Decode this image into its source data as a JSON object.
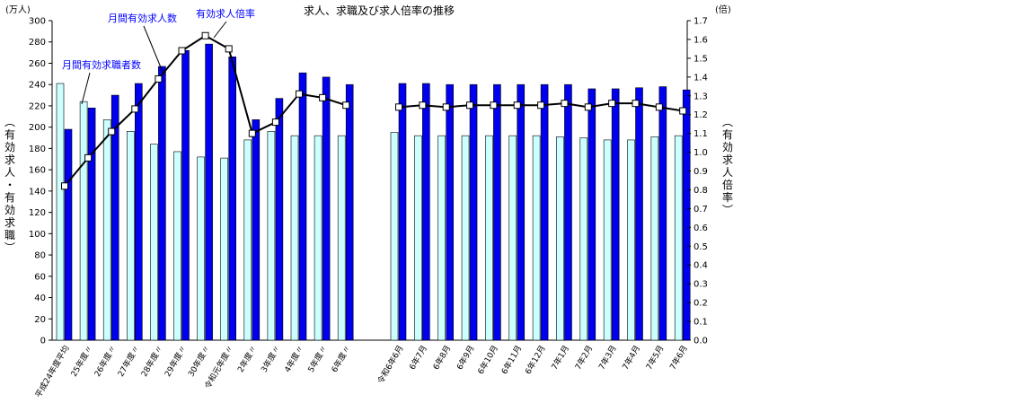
{
  "chart_data": {
    "type": "bar",
    "title": "求人、求職及び求人倍率の推移",
    "y_left_unit": "(万人)",
    "y_right_unit": "(倍)",
    "ylabel_left": "(有効求人・有効求職)",
    "ylabel_right": "(有効求人倍率)",
    "ylim_left": [
      0,
      300
    ],
    "ylim_right": [
      0.0,
      1.7
    ],
    "yticks_left": [
      "0",
      "20",
      "40",
      "60",
      "80",
      "100",
      "120",
      "140",
      "160",
      "180",
      "200",
      "220",
      "240",
      "260",
      "280",
      "300"
    ],
    "yticks_right": [
      "0.0",
      "0.1",
      "0.2",
      "0.3",
      "0.4",
      "0.5",
      "0.6",
      "0.7",
      "0.8",
      "0.9",
      "1.0",
      "1.1",
      "1.2",
      "1.3",
      "1.4",
      "1.5",
      "1.6",
      "1.7"
    ],
    "grid": false,
    "categories": [
      "平成24年度平均",
      "25年度〃",
      "26年度〃",
      "27年度〃",
      "28年度〃",
      "29年度〃",
      "30年度〃",
      "令和元年度〃",
      "2年度〃",
      "3年度〃",
      "4年度〃",
      "5年度〃",
      "6年度〃",
      "令和6年6月",
      "6年7月",
      "6年8月",
      "6年9月",
      "6年10月",
      "6年11月",
      "6年12月",
      "7年1月",
      "7年2月",
      "7年3月",
      "7年4月",
      "7年5月",
      "7年6月"
    ],
    "series": [
      {
        "name": "月間有効求職者数",
        "type": "bar",
        "color": "#ccffff",
        "values": [
          241,
          224,
          207,
          196,
          184,
          177,
          172,
          171,
          188,
          196,
          192,
          192,
          192,
          195,
          192,
          192,
          192,
          192,
          192,
          192,
          191,
          190,
          188,
          188,
          191,
          192
        ]
      },
      {
        "name": "月間有効求人数",
        "type": "bar",
        "color": "#0000ee",
        "values": [
          198,
          218,
          230,
          241,
          257,
          272,
          278,
          266,
          207,
          227,
          251,
          247,
          240,
          241,
          241,
          240,
          240,
          240,
          240,
          240,
          240,
          236,
          236,
          237,
          238,
          235
        ]
      },
      {
        "name": "有効求人倍率",
        "type": "line",
        "axis": "right",
        "color": "#000000",
        "values": [
          0.82,
          0.97,
          1.11,
          1.23,
          1.39,
          1.54,
          1.62,
          1.55,
          1.1,
          1.16,
          1.31,
          1.29,
          1.25,
          1.24,
          1.25,
          1.24,
          1.25,
          1.25,
          1.25,
          1.25,
          1.26,
          1.24,
          1.26,
          1.26,
          1.24,
          1.22
        ]
      }
    ],
    "annotations": [
      "月間有効求人数",
      "有効求人倍率",
      "月間有効求職者数"
    ]
  }
}
